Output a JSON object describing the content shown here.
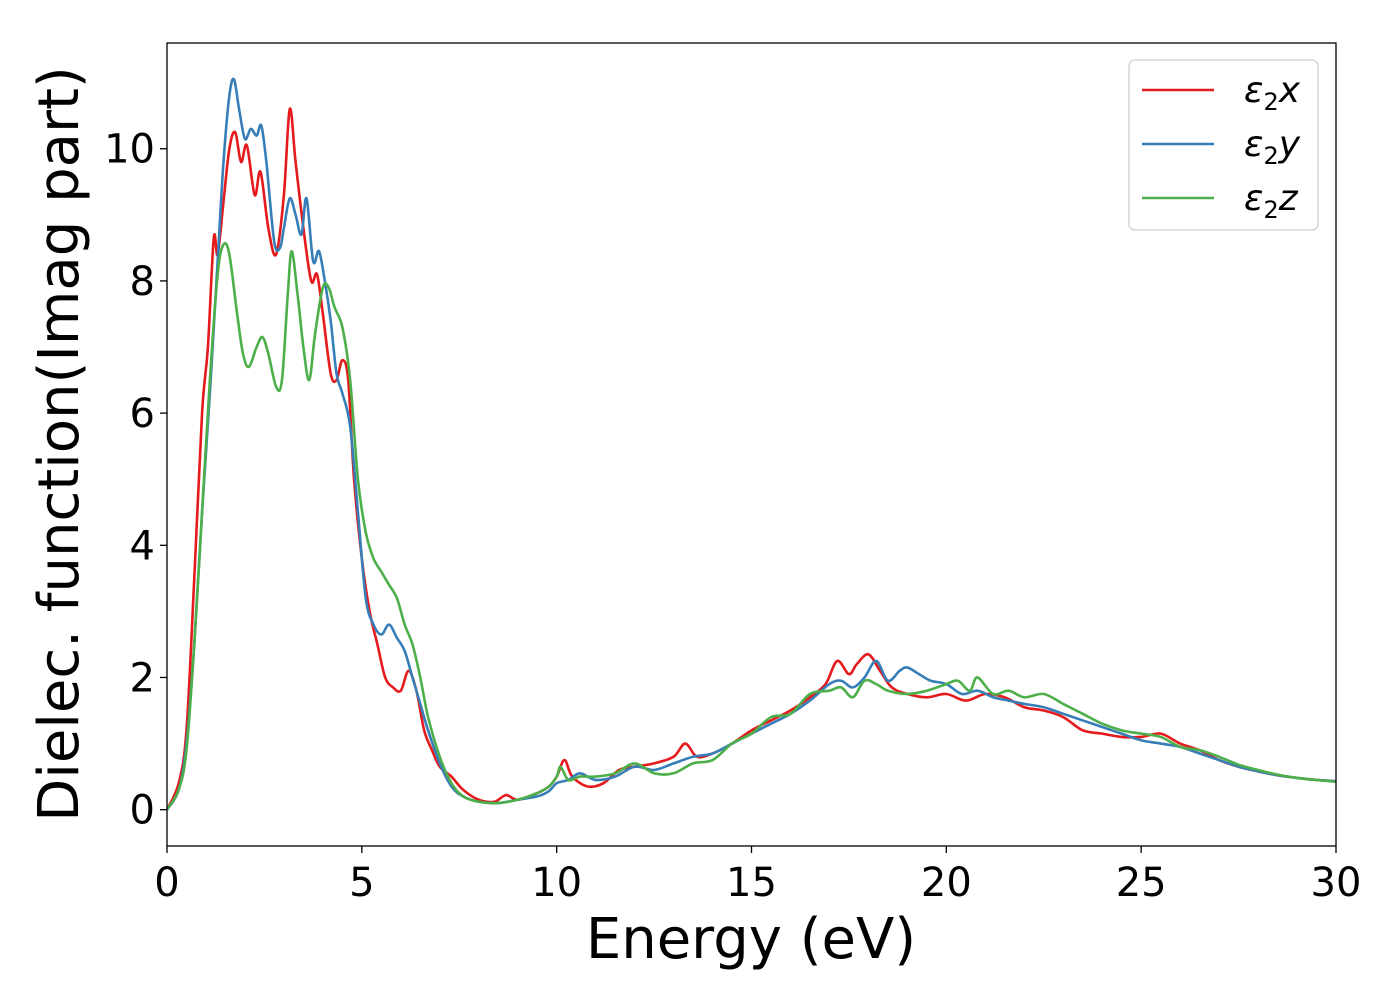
{
  "chart_data": {
    "type": "line",
    "xlabel": "Energy (eV)",
    "ylabel": "Dielec. function(Imag part)",
    "xlim": [
      0,
      30
    ],
    "ylim": [
      -0.55,
      11.6
    ],
    "xticks": [
      0,
      5,
      10,
      15,
      20,
      25,
      30
    ],
    "yticks": [
      0,
      2,
      4,
      6,
      8,
      10
    ],
    "grid": false,
    "legend_position": "top-right",
    "series": [
      {
        "name": "ε₂x",
        "symbol": "ε",
        "sub": "2",
        "axis": "x",
        "color": "#e41a1c",
        "points": [
          [
            0,
            0
          ],
          [
            0.3,
            0.4
          ],
          [
            0.5,
            1.2
          ],
          [
            0.7,
            3.5
          ],
          [
            0.9,
            6.0
          ],
          [
            1.05,
            7.0
          ],
          [
            1.2,
            8.65
          ],
          [
            1.3,
            8.4
          ],
          [
            1.45,
            9.2
          ],
          [
            1.6,
            10.0
          ],
          [
            1.75,
            10.25
          ],
          [
            1.9,
            9.8
          ],
          [
            2.05,
            10.05
          ],
          [
            2.25,
            9.3
          ],
          [
            2.4,
            9.65
          ],
          [
            2.6,
            8.8
          ],
          [
            2.8,
            8.4
          ],
          [
            3.0,
            9.3
          ],
          [
            3.15,
            10.6
          ],
          [
            3.3,
            9.8
          ],
          [
            3.5,
            8.8
          ],
          [
            3.7,
            8.0
          ],
          [
            3.85,
            8.1
          ],
          [
            4.0,
            7.5
          ],
          [
            4.2,
            6.6
          ],
          [
            4.35,
            6.5
          ],
          [
            4.5,
            6.8
          ],
          [
            4.65,
            6.5
          ],
          [
            4.8,
            5.0
          ],
          [
            5.0,
            3.8
          ],
          [
            5.2,
            3.0
          ],
          [
            5.4,
            2.5
          ],
          [
            5.6,
            2.0
          ],
          [
            5.8,
            1.85
          ],
          [
            6.0,
            1.8
          ],
          [
            6.2,
            2.1
          ],
          [
            6.4,
            1.8
          ],
          [
            6.6,
            1.2
          ],
          [
            6.8,
            0.9
          ],
          [
            7.0,
            0.65
          ],
          [
            7.3,
            0.5
          ],
          [
            7.6,
            0.3
          ],
          [
            8.0,
            0.15
          ],
          [
            8.4,
            0.12
          ],
          [
            8.7,
            0.22
          ],
          [
            9.0,
            0.15
          ],
          [
            9.5,
            0.25
          ],
          [
            9.8,
            0.35
          ],
          [
            10.0,
            0.5
          ],
          [
            10.2,
            0.75
          ],
          [
            10.4,
            0.5
          ],
          [
            10.8,
            0.35
          ],
          [
            11.2,
            0.4
          ],
          [
            11.6,
            0.6
          ],
          [
            12.0,
            0.65
          ],
          [
            12.5,
            0.7
          ],
          [
            13.0,
            0.8
          ],
          [
            13.3,
            1.0
          ],
          [
            13.6,
            0.8
          ],
          [
            14.0,
            0.85
          ],
          [
            14.5,
            1.0
          ],
          [
            15.0,
            1.2
          ],
          [
            15.5,
            1.35
          ],
          [
            16.0,
            1.5
          ],
          [
            16.5,
            1.7
          ],
          [
            16.9,
            1.9
          ],
          [
            17.2,
            2.25
          ],
          [
            17.5,
            2.05
          ],
          [
            17.7,
            2.2
          ],
          [
            18.0,
            2.35
          ],
          [
            18.3,
            2.1
          ],
          [
            18.6,
            1.85
          ],
          [
            19.0,
            1.75
          ],
          [
            19.5,
            1.7
          ],
          [
            20.0,
            1.75
          ],
          [
            20.5,
            1.65
          ],
          [
            21.0,
            1.75
          ],
          [
            21.5,
            1.7
          ],
          [
            22.0,
            1.55
          ],
          [
            22.5,
            1.5
          ],
          [
            23.0,
            1.4
          ],
          [
            23.5,
            1.2
          ],
          [
            24.0,
            1.15
          ],
          [
            24.5,
            1.1
          ],
          [
            25.0,
            1.1
          ],
          [
            25.5,
            1.15
          ],
          [
            26.0,
            1.0
          ],
          [
            26.5,
            0.9
          ],
          [
            27.0,
            0.75
          ],
          [
            27.5,
            0.65
          ],
          [
            28.0,
            0.58
          ],
          [
            28.5,
            0.52
          ],
          [
            29.0,
            0.48
          ],
          [
            29.5,
            0.45
          ],
          [
            30.0,
            0.43
          ]
        ]
      },
      {
        "name": "ε₂y",
        "symbol": "ε",
        "sub": "2",
        "axis": "y",
        "color": "#377eb8",
        "points": [
          [
            0,
            0
          ],
          [
            0.3,
            0.3
          ],
          [
            0.5,
            1.0
          ],
          [
            0.7,
            2.5
          ],
          [
            0.9,
            4.5
          ],
          [
            1.1,
            6.3
          ],
          [
            1.3,
            8.3
          ],
          [
            1.45,
            9.8
          ],
          [
            1.6,
            10.8
          ],
          [
            1.72,
            11.05
          ],
          [
            1.85,
            10.6
          ],
          [
            2.0,
            10.15
          ],
          [
            2.15,
            10.3
          ],
          [
            2.3,
            10.2
          ],
          [
            2.42,
            10.35
          ],
          [
            2.55,
            9.8
          ],
          [
            2.75,
            8.6
          ],
          [
            2.9,
            8.5
          ],
          [
            3.0,
            8.8
          ],
          [
            3.15,
            9.25
          ],
          [
            3.3,
            9.0
          ],
          [
            3.45,
            8.7
          ],
          [
            3.58,
            9.25
          ],
          [
            3.75,
            8.3
          ],
          [
            3.9,
            8.45
          ],
          [
            4.05,
            8.0
          ],
          [
            4.2,
            7.4
          ],
          [
            4.35,
            6.6
          ],
          [
            4.5,
            6.3
          ],
          [
            4.7,
            5.8
          ],
          [
            4.9,
            4.5
          ],
          [
            5.1,
            3.2
          ],
          [
            5.3,
            2.8
          ],
          [
            5.5,
            2.65
          ],
          [
            5.7,
            2.8
          ],
          [
            5.9,
            2.6
          ],
          [
            6.1,
            2.4
          ],
          [
            6.3,
            2.0
          ],
          [
            6.5,
            1.6
          ],
          [
            6.7,
            1.2
          ],
          [
            7.0,
            0.7
          ],
          [
            7.3,
            0.35
          ],
          [
            7.6,
            0.2
          ],
          [
            8.0,
            0.12
          ],
          [
            8.5,
            0.1
          ],
          [
            9.0,
            0.15
          ],
          [
            9.5,
            0.2
          ],
          [
            9.8,
            0.28
          ],
          [
            10.0,
            0.4
          ],
          [
            10.3,
            0.45
          ],
          [
            10.6,
            0.55
          ],
          [
            11.0,
            0.45
          ],
          [
            11.5,
            0.5
          ],
          [
            12.0,
            0.65
          ],
          [
            12.5,
            0.6
          ],
          [
            13.0,
            0.7
          ],
          [
            13.5,
            0.8
          ],
          [
            14.0,
            0.85
          ],
          [
            14.5,
            1.0
          ],
          [
            15.0,
            1.15
          ],
          [
            15.5,
            1.3
          ],
          [
            16.0,
            1.45
          ],
          [
            16.5,
            1.65
          ],
          [
            17.0,
            1.9
          ],
          [
            17.3,
            1.95
          ],
          [
            17.6,
            1.85
          ],
          [
            17.9,
            2.0
          ],
          [
            18.2,
            2.25
          ],
          [
            18.5,
            1.95
          ],
          [
            18.8,
            2.1
          ],
          [
            19.0,
            2.15
          ],
          [
            19.3,
            2.05
          ],
          [
            19.6,
            1.95
          ],
          [
            20.0,
            1.9
          ],
          [
            20.4,
            1.75
          ],
          [
            20.8,
            1.8
          ],
          [
            21.2,
            1.7
          ],
          [
            21.6,
            1.65
          ],
          [
            22.0,
            1.6
          ],
          [
            22.5,
            1.55
          ],
          [
            23.0,
            1.45
          ],
          [
            23.5,
            1.35
          ],
          [
            24.0,
            1.25
          ],
          [
            24.5,
            1.15
          ],
          [
            25.0,
            1.05
          ],
          [
            25.5,
            1.0
          ],
          [
            26.0,
            0.95
          ],
          [
            26.5,
            0.85
          ],
          [
            27.0,
            0.75
          ],
          [
            27.5,
            0.65
          ],
          [
            28.0,
            0.58
          ],
          [
            28.5,
            0.52
          ],
          [
            29.0,
            0.48
          ],
          [
            29.5,
            0.45
          ],
          [
            30.0,
            0.43
          ]
        ]
      },
      {
        "name": "ε₂z",
        "symbol": "ε",
        "sub": "2",
        "axis": "z",
        "color": "#4daf4a",
        "points": [
          [
            0,
            0
          ],
          [
            0.3,
            0.3
          ],
          [
            0.5,
            0.9
          ],
          [
            0.7,
            2.5
          ],
          [
            0.9,
            4.5
          ],
          [
            1.1,
            6.5
          ],
          [
            1.3,
            8.1
          ],
          [
            1.45,
            8.55
          ],
          [
            1.6,
            8.4
          ],
          [
            1.8,
            7.5
          ],
          [
            1.95,
            6.9
          ],
          [
            2.1,
            6.7
          ],
          [
            2.3,
            7.0
          ],
          [
            2.45,
            7.15
          ],
          [
            2.6,
            6.9
          ],
          [
            2.8,
            6.4
          ],
          [
            2.95,
            6.5
          ],
          [
            3.1,
            7.8
          ],
          [
            3.2,
            8.45
          ],
          [
            3.35,
            7.8
          ],
          [
            3.5,
            7.0
          ],
          [
            3.65,
            6.5
          ],
          [
            3.8,
            7.2
          ],
          [
            4.0,
            7.9
          ],
          [
            4.15,
            7.9
          ],
          [
            4.3,
            7.6
          ],
          [
            4.5,
            7.3
          ],
          [
            4.7,
            6.5
          ],
          [
            4.9,
            5.0
          ],
          [
            5.1,
            4.2
          ],
          [
            5.3,
            3.8
          ],
          [
            5.5,
            3.6
          ],
          [
            5.7,
            3.4
          ],
          [
            5.9,
            3.2
          ],
          [
            6.1,
            2.8
          ],
          [
            6.3,
            2.5
          ],
          [
            6.5,
            2.0
          ],
          [
            6.7,
            1.4
          ],
          [
            7.0,
            0.8
          ],
          [
            7.3,
            0.4
          ],
          [
            7.6,
            0.2
          ],
          [
            8.0,
            0.12
          ],
          [
            8.5,
            0.1
          ],
          [
            9.0,
            0.15
          ],
          [
            9.5,
            0.25
          ],
          [
            9.8,
            0.35
          ],
          [
            10.0,
            0.5
          ],
          [
            10.1,
            0.65
          ],
          [
            10.3,
            0.45
          ],
          [
            10.6,
            0.5
          ],
          [
            11.0,
            0.5
          ],
          [
            11.5,
            0.55
          ],
          [
            12.0,
            0.7
          ],
          [
            12.5,
            0.55
          ],
          [
            13.0,
            0.55
          ],
          [
            13.5,
            0.7
          ],
          [
            14.0,
            0.75
          ],
          [
            14.5,
            1.0
          ],
          [
            15.0,
            1.15
          ],
          [
            15.5,
            1.4
          ],
          [
            16.0,
            1.45
          ],
          [
            16.5,
            1.75
          ],
          [
            17.0,
            1.8
          ],
          [
            17.3,
            1.85
          ],
          [
            17.6,
            1.7
          ],
          [
            17.9,
            1.95
          ],
          [
            18.2,
            1.9
          ],
          [
            18.5,
            1.8
          ],
          [
            19.0,
            1.75
          ],
          [
            19.5,
            1.8
          ],
          [
            20.0,
            1.9
          ],
          [
            20.3,
            1.95
          ],
          [
            20.6,
            1.8
          ],
          [
            20.8,
            2.0
          ],
          [
            21.2,
            1.75
          ],
          [
            21.6,
            1.8
          ],
          [
            22.0,
            1.7
          ],
          [
            22.5,
            1.75
          ],
          [
            23.0,
            1.6
          ],
          [
            23.5,
            1.45
          ],
          [
            24.0,
            1.3
          ],
          [
            24.5,
            1.2
          ],
          [
            25.0,
            1.15
          ],
          [
            25.5,
            1.1
          ],
          [
            26.0,
            0.95
          ],
          [
            26.5,
            0.9
          ],
          [
            27.0,
            0.8
          ],
          [
            27.5,
            0.68
          ],
          [
            28.0,
            0.6
          ],
          [
            28.5,
            0.53
          ],
          [
            29.0,
            0.48
          ],
          [
            29.5,
            0.45
          ],
          [
            30.0,
            0.42
          ]
        ]
      }
    ]
  }
}
